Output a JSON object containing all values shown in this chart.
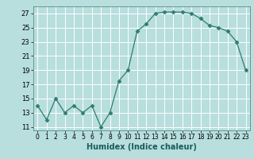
{
  "x": [
    0,
    1,
    2,
    3,
    4,
    5,
    6,
    7,
    8,
    9,
    10,
    11,
    12,
    13,
    14,
    15,
    16,
    17,
    18,
    19,
    20,
    21,
    22,
    23
  ],
  "y": [
    14,
    12,
    15,
    13,
    14,
    13,
    14,
    11,
    13,
    17.5,
    19,
    24.5,
    25.5,
    27,
    27.2,
    27.2,
    27.2,
    27,
    26.3,
    25.3,
    25,
    24.5,
    23,
    19
  ],
  "line_color": "#2e7d6e",
  "marker": "D",
  "marker_size": 2.5,
  "background_color": "#b8dede",
  "grid_color": "#ffffff",
  "xlabel": "Humidex (Indice chaleur)",
  "ylim": [
    10.5,
    28
  ],
  "yticks": [
    11,
    13,
    15,
    17,
    19,
    21,
    23,
    25,
    27
  ],
  "xtick_labels": [
    "0",
    "1",
    "2",
    "3",
    "4",
    "5",
    "6",
    "7",
    "8",
    "9",
    "10",
    "11",
    "12",
    "13",
    "14",
    "15",
    "16",
    "17",
    "18",
    "19",
    "20",
    "21",
    "22",
    "23"
  ],
  "xticks": [
    0,
    1,
    2,
    3,
    4,
    5,
    6,
    7,
    8,
    9,
    10,
    11,
    12,
    13,
    14,
    15,
    16,
    17,
    18,
    19,
    20,
    21,
    22,
    23
  ],
  "xlim": [
    -0.5,
    23.5
  ]
}
